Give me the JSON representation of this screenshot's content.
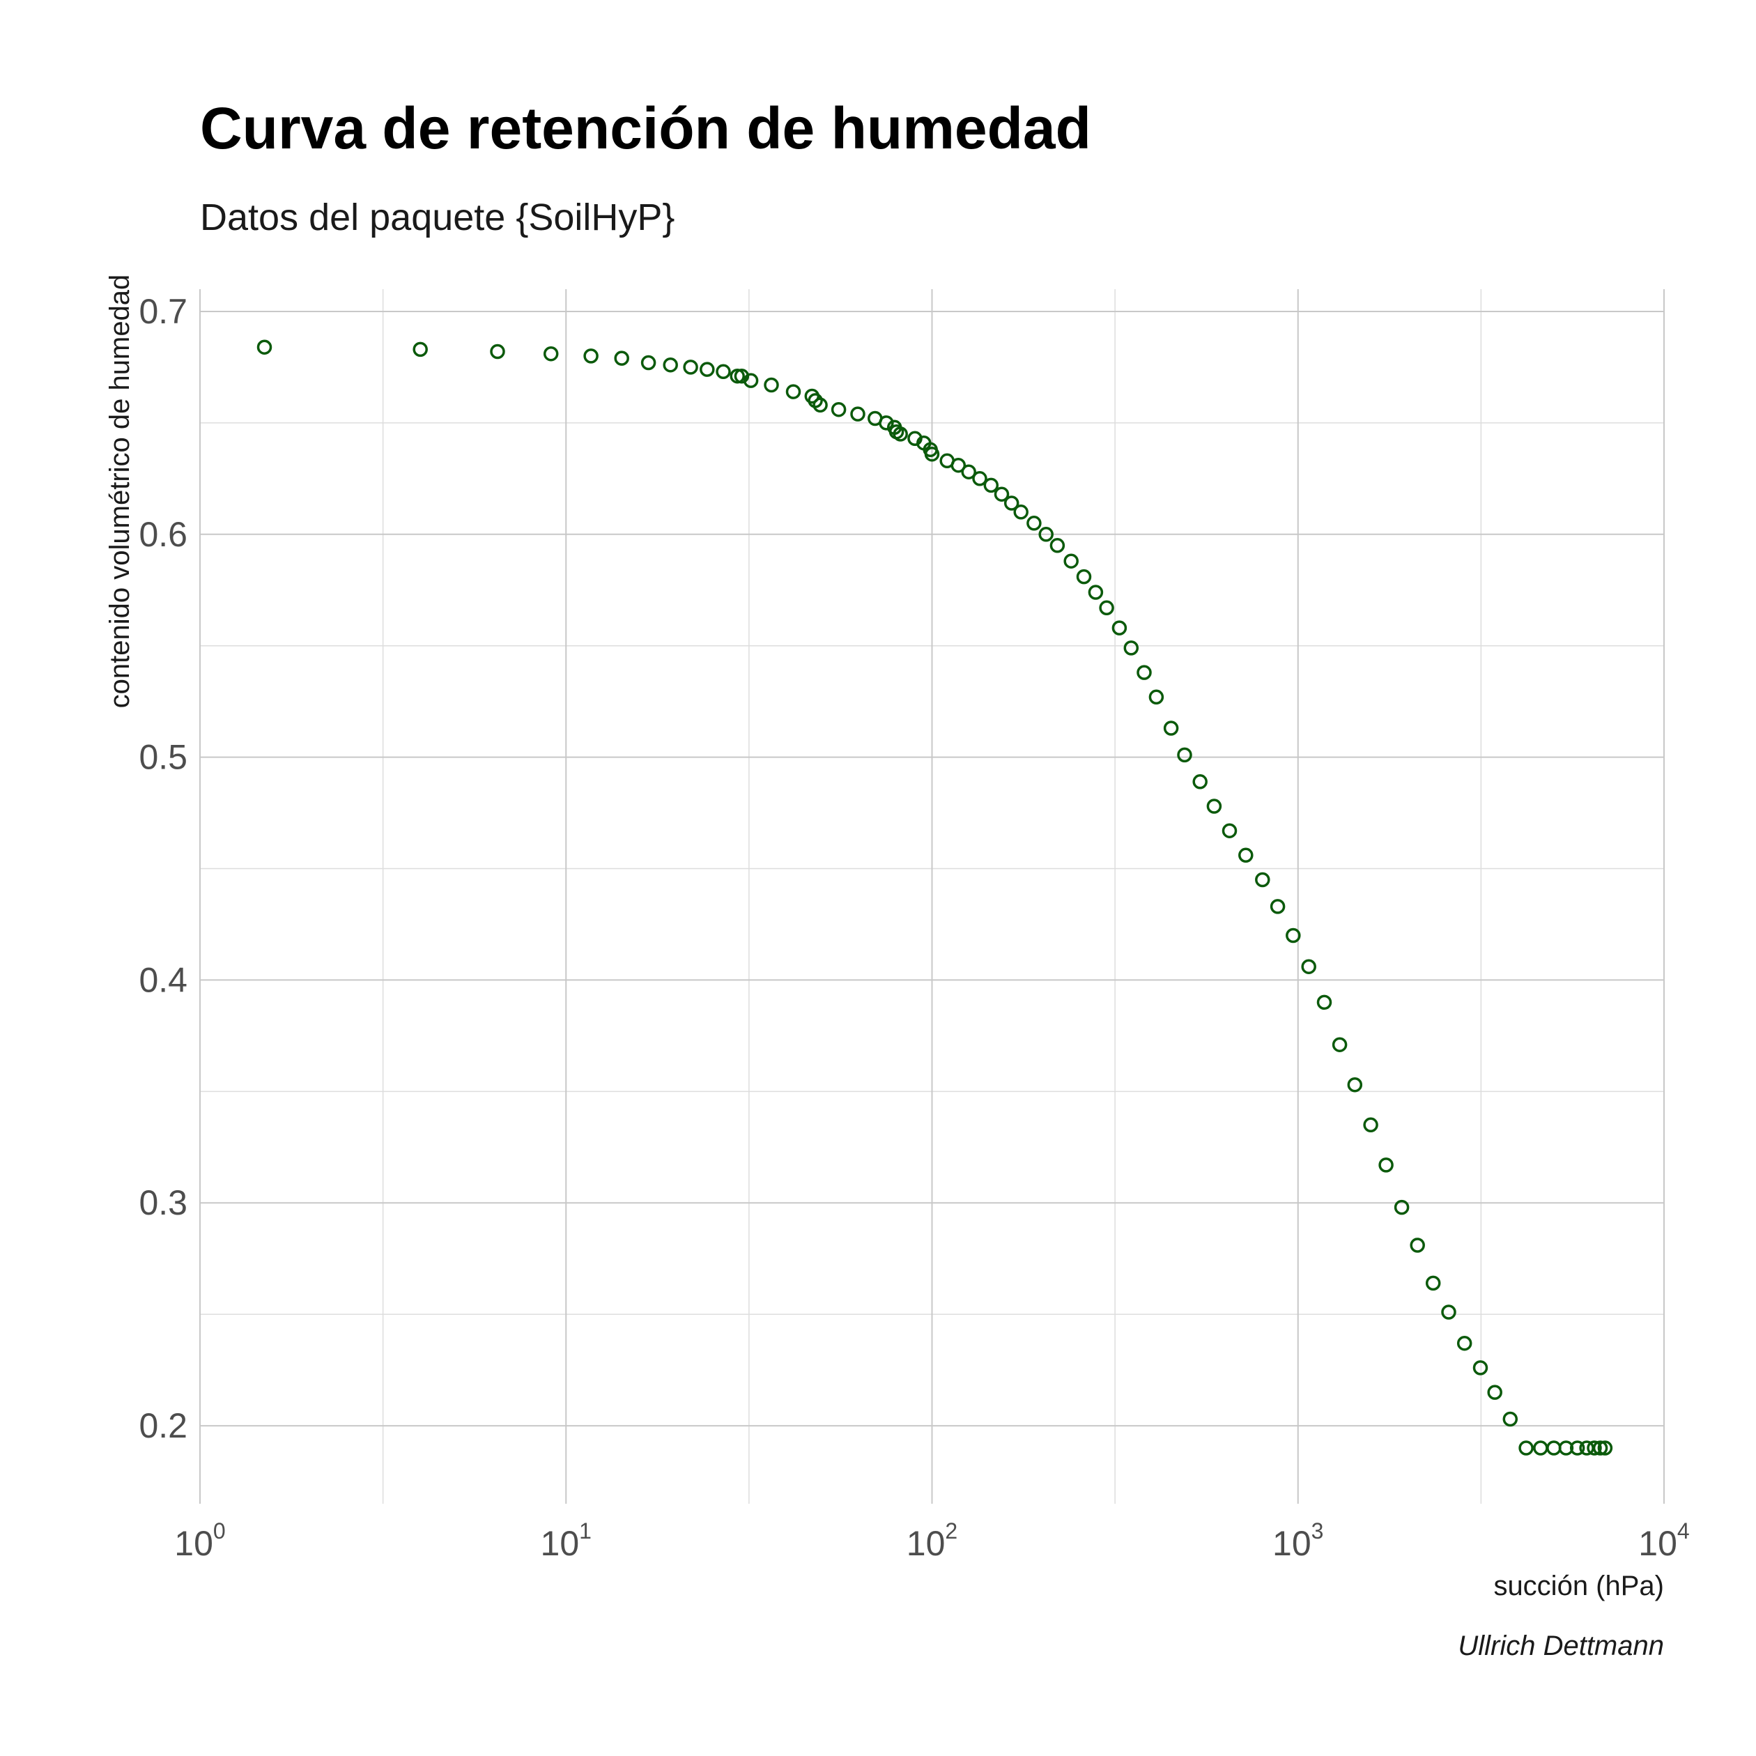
{
  "chart_data": {
    "type": "scatter",
    "title": "Curva de retención de humedad",
    "subtitle": "Datos del paquete {SoilHyP}",
    "xlabel": "succión (hPa)",
    "ylabel": "contenido volumétrico de humedad",
    "caption": "Ullrich Dettmann",
    "x_scale": "log10",
    "xlim": [
      1,
      10000
    ],
    "ylim": [
      0.165,
      0.71
    ],
    "x_ticks": [
      {
        "value": 1,
        "base": "10",
        "exp": "0"
      },
      {
        "value": 10,
        "base": "10",
        "exp": "1"
      },
      {
        "value": 100,
        "base": "10",
        "exp": "2"
      },
      {
        "value": 1000,
        "base": "10",
        "exp": "3"
      },
      {
        "value": 10000,
        "base": "10",
        "exp": "4"
      }
    ],
    "y_ticks": [
      {
        "value": 0.2,
        "label": "0.2"
      },
      {
        "value": 0.3,
        "label": "0.3"
      },
      {
        "value": 0.4,
        "label": "0.4"
      },
      {
        "value": 0.5,
        "label": "0.5"
      },
      {
        "value": 0.6,
        "label": "0.6"
      },
      {
        "value": 0.7,
        "label": "0.7"
      }
    ],
    "grid": true,
    "legend": "none",
    "point_color": "#0b5a0b",
    "series": [
      {
        "x": [
          1.5,
          4.0,
          6.5,
          9.1,
          11.7,
          14.2,
          16.8,
          19.3,
          21.9,
          24.3,
          26.9,
          29.4,
          30.2,
          32.0,
          36.4,
          41.8,
          47.0,
          48.0,
          49.5,
          55.6,
          62.7,
          69.9,
          75.0,
          79.0,
          80.0,
          82.0,
          89.8,
          95.0,
          99.0,
          100.0,
          110.0,
          118.0,
          126.0,
          135.0,
          145.0,
          155.0,
          165.0,
          175.0,
          190.0,
          205.0,
          220.0,
          240.0,
          260.0,
          280.0,
          300.0,
          325.0,
          350.0,
          380.0,
          410.0,
          450.0,
          490.0,
          540.0,
          590.0,
          650.0,
          720.0,
          800.0,
          880.0,
          970.0,
          1070.0,
          1180.0,
          1300.0,
          1430.0,
          1580.0,
          1740.0,
          1920.0,
          2120.0,
          2340.0,
          2580.0,
          2850.0,
          3150.0,
          3450.0,
          3800.0,
          4200.0,
          4600.0,
          5000.0,
          5400.0,
          5800.0,
          6150.0,
          6450.0,
          6700.0,
          6900.0
        ],
        "y": [
          0.684,
          0.683,
          0.682,
          0.681,
          0.68,
          0.679,
          0.677,
          0.676,
          0.675,
          0.674,
          0.673,
          0.671,
          0.671,
          0.669,
          0.667,
          0.664,
          0.662,
          0.66,
          0.658,
          0.656,
          0.654,
          0.652,
          0.65,
          0.648,
          0.646,
          0.645,
          0.643,
          0.641,
          0.638,
          0.636,
          0.633,
          0.631,
          0.628,
          0.625,
          0.622,
          0.618,
          0.614,
          0.61,
          0.605,
          0.6,
          0.595,
          0.588,
          0.581,
          0.574,
          0.567,
          0.558,
          0.549,
          0.538,
          0.527,
          0.513,
          0.501,
          0.489,
          0.478,
          0.467,
          0.456,
          0.445,
          0.433,
          0.42,
          0.406,
          0.39,
          0.371,
          0.353,
          0.335,
          0.317,
          0.298,
          0.281,
          0.264,
          0.251,
          0.237,
          0.226,
          0.215,
          0.203,
          0.19,
          0.19,
          0.19,
          0.19,
          0.19,
          0.19,
          0.19,
          0.19,
          0.19
        ]
      }
    ]
  }
}
